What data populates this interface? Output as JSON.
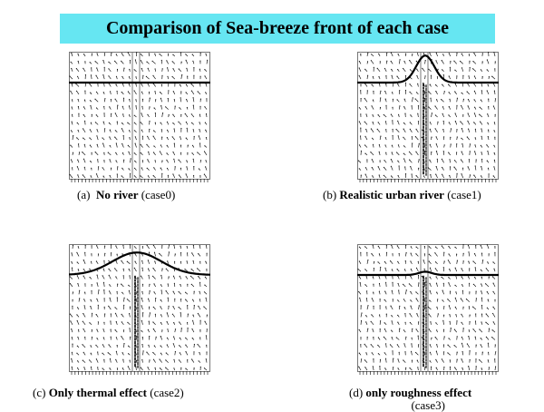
{
  "title": "Comparison of Sea-breeze front of each case",
  "colors": {
    "banner": "#66e6f2",
    "front_line": "#000000",
    "vector": "#1a1a1a",
    "grid_line": "#555555"
  },
  "panels": [
    {
      "id": "a",
      "letter": "(a)",
      "label_bold": "No river",
      "label_case": "(case0)",
      "river": false,
      "front_shape": "flat",
      "front_peak_height": 0
    },
    {
      "id": "b",
      "letter": "(b)",
      "label_bold": "Realistic urban river",
      "label_case": "(case1)",
      "river": true,
      "front_shape": "narrow-peak",
      "front_peak_height": 0.62
    },
    {
      "id": "c",
      "letter": "(c)",
      "label_bold": "Only thermal effect",
      "label_case": "(case2)",
      "river": true,
      "front_shape": "broad-peak",
      "front_peak_height": 0.55
    },
    {
      "id": "d",
      "letter": "(d)",
      "label_bold": "only roughness effect",
      "label_case": "(case3)",
      "river": true,
      "front_shape": "small-bump",
      "front_peak_height": 0.12
    }
  ]
}
